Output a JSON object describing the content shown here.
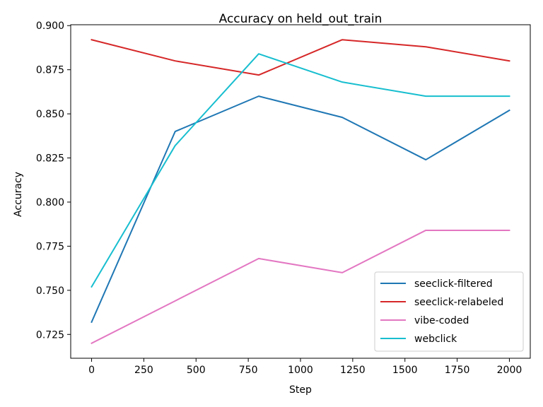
{
  "chart_data": {
    "type": "line",
    "title": "Accuracy on held_out_train",
    "xlabel": "Step",
    "ylabel": "Accuracy",
    "x": [
      0,
      400,
      800,
      1200,
      1600,
      2000
    ],
    "xlim": [
      -100,
      2100
    ],
    "ylim": [
      0.7115,
      0.9005
    ],
    "xticks": [
      0,
      250,
      500,
      750,
      1000,
      1250,
      1500,
      1750,
      2000
    ],
    "xtick_labels": [
      "0",
      "250",
      "500",
      "750",
      "1000",
      "1250",
      "1500",
      "1750",
      "2000"
    ],
    "yticks": [
      0.725,
      0.75,
      0.775,
      0.8,
      0.825,
      0.85,
      0.875,
      0.9
    ],
    "ytick_labels": [
      "0.725",
      "0.750",
      "0.775",
      "0.800",
      "0.825",
      "0.850",
      "0.875",
      "0.900"
    ],
    "grid": false,
    "legend_position": "lower-right",
    "series": [
      {
        "name": "seeclick-filtered",
        "color": "#1f77b4",
        "values": [
          0.732,
          0.84,
          0.86,
          0.848,
          0.824,
          0.852
        ]
      },
      {
        "name": "seeclick-relabeled",
        "color": "#d62728",
        "values": [
          0.892,
          0.88,
          0.872,
          0.892,
          0.888,
          0.88
        ]
      },
      {
        "name": "vibe-coded",
        "color": "#e377c2",
        "values": [
          0.72,
          0.744,
          0.768,
          0.76,
          0.784,
          0.784
        ]
      },
      {
        "name": "webclick",
        "color": "#17becf",
        "values": [
          0.752,
          0.832,
          0.884,
          0.868,
          0.86,
          0.86
        ]
      }
    ]
  }
}
